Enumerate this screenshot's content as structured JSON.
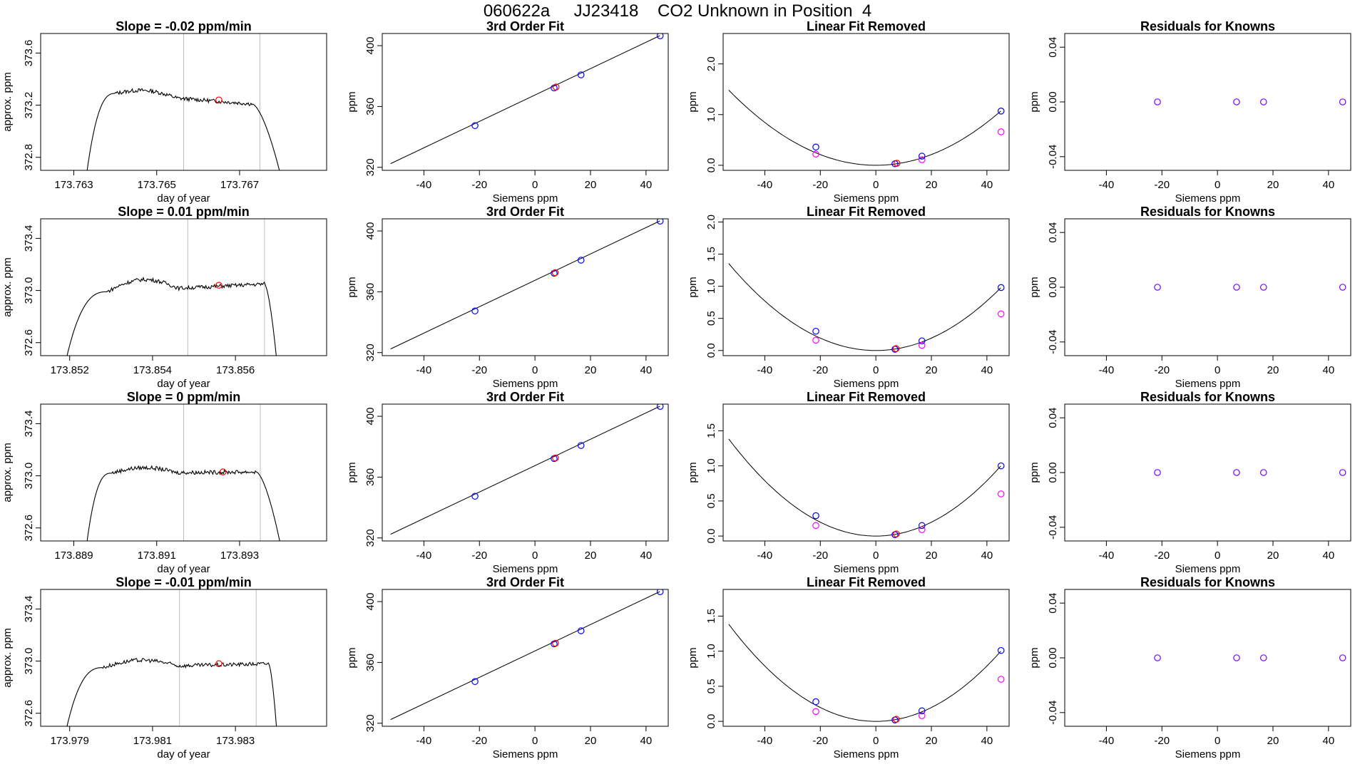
{
  "figure": {
    "main_title": "060622a     JJ23418    CO2 Unknown in Position  4"
  },
  "colors": {
    "line": "#000000",
    "frame": "#000000",
    "known": "#0000ff",
    "unknown": "#ff0000",
    "residual": "#8000ff",
    "linear_removed_magenta": "#ff00ff",
    "vline": "#bebebe"
  },
  "chart_data": [
    {
      "type": "line",
      "row": 1,
      "panel": "time-series",
      "title": "Slope =  -0.02  ppm/min",
      "xlabel": "day of year",
      "ylabel": "approx. ppm",
      "xlim": [
        173.7622,
        173.7691
      ],
      "ylim": [
        372.7,
        373.75
      ],
      "x_ticks": [
        173.763,
        173.765,
        173.767
      ],
      "x_tick_labels": [
        "173.763",
        "173.765",
        "173.767"
      ],
      "y_ticks": [
        372.8,
        373.2,
        373.6
      ],
      "y_tick_labels": [
        "372.8",
        "373.2",
        "373.6"
      ],
      "t_start": 173.7633,
      "t_end": 173.768,
      "rise_end": 173.764,
      "drop_start": 173.7673,
      "plateau_start_level": 373.29,
      "plateau_end_level": 373.21,
      "peak_level": 373.33,
      "bottom_level": 372.65,
      "vlines": [
        173.76565,
        173.76749
      ],
      "unknown_point": {
        "x": 173.7665,
        "y": 373.24
      }
    },
    {
      "type": "line",
      "row": 2,
      "panel": "time-series",
      "title": "Slope =  0.01  ppm/min",
      "xlabel": "day of year",
      "ylabel": "approx. ppm",
      "xlim": [
        173.8513,
        173.8582
      ],
      "ylim": [
        372.5,
        373.55
      ],
      "x_ticks": [
        173.852,
        173.854,
        173.856
      ],
      "x_tick_labels": [
        "173.852",
        "173.854",
        "173.856"
      ],
      "y_ticks": [
        372.6,
        373.0,
        373.4
      ],
      "y_tick_labels": [
        "372.6",
        "373.0",
        "373.4"
      ],
      "t_start": 173.8519,
      "t_end": 173.857,
      "rise_end": 173.8529,
      "drop_start": 173.8567,
      "plateau_start_level": 372.99,
      "plateau_end_level": 373.05,
      "peak_level": 373.07,
      "bottom_level": 372.45,
      "vlines": [
        173.85485,
        173.8567
      ],
      "unknown_point": {
        "x": 173.8556,
        "y": 373.04
      }
    },
    {
      "type": "line",
      "row": 3,
      "panel": "time-series",
      "title": "Slope =  0  ppm/min",
      "xlabel": "day of year",
      "ylabel": "approx. ppm",
      "xlim": [
        173.8882,
        173.8951
      ],
      "ylim": [
        372.5,
        373.55
      ],
      "x_ticks": [
        173.889,
        173.891,
        173.893
      ],
      "x_tick_labels": [
        "173.889",
        "173.891",
        "173.893"
      ],
      "y_ticks": [
        372.6,
        373.0,
        373.4
      ],
      "y_tick_labels": [
        "372.6",
        "373.0",
        "373.4"
      ],
      "t_start": 173.8893,
      "t_end": 173.894,
      "rise_end": 173.8899,
      "drop_start": 173.8934,
      "plateau_start_level": 373.02,
      "plateau_end_level": 373.03,
      "peak_level": 373.06,
      "bottom_level": 372.45,
      "vlines": [
        173.89165,
        173.8935
      ],
      "unknown_point": {
        "x": 173.8926,
        "y": 373.03
      }
    },
    {
      "type": "line",
      "row": 4,
      "panel": "time-series",
      "title": "Slope =  -0.01  ppm/min",
      "xlabel": "day of year",
      "ylabel": "approx. ppm",
      "xlim": [
        173.9783,
        173.9852
      ],
      "ylim": [
        372.5,
        373.55
      ],
      "x_ticks": [
        173.979,
        173.981,
        173.983
      ],
      "x_tick_labels": [
        "173.979",
        "173.981",
        "173.983"
      ],
      "y_ticks": [
        372.6,
        373.0,
        373.4
      ],
      "y_tick_labels": [
        "372.6",
        "373.0",
        "373.4"
      ],
      "t_start": 173.9789,
      "t_end": 173.984,
      "rise_end": 173.9798,
      "drop_start": 173.9838,
      "plateau_start_level": 372.95,
      "plateau_end_level": 372.98,
      "peak_level": 373.0,
      "bottom_level": 372.45,
      "vlines": [
        173.98165,
        173.9835
      ],
      "unknown_point": {
        "x": 173.9826,
        "y": 372.98
      }
    },
    {
      "type": "scatter",
      "row": 1,
      "panel": "fit",
      "title": "3rd Order Fit",
      "xlabel": "Siemens ppm",
      "ylabel": "ppm",
      "xlim": [
        -55,
        48
      ],
      "ylim": [
        318,
        408
      ],
      "x_ticks": [
        -40,
        -20,
        0,
        20,
        40
      ],
      "x_tick_labels": [
        "-40",
        "-20",
        "0",
        "20",
        "40"
      ],
      "y_ticks": [
        320,
        360,
        400
      ],
      "y_tick_labels": [
        "320",
        "360",
        "400"
      ],
      "fit_line": {
        "x": [
          -52,
          45
        ],
        "y": [
          322.4,
          406.6
        ]
      },
      "knowns": [
        {
          "x": -21.6,
          "y": 347.4
        },
        {
          "x": 6.9,
          "y": 372.2
        },
        {
          "x": 16.6,
          "y": 380.8
        },
        {
          "x": 45.1,
          "y": 406.5
        }
      ],
      "unknown": {
        "x": 7.6,
        "y": 372.8
      }
    },
    {
      "type": "scatter",
      "row": 2,
      "panel": "fit",
      "title": "3rd Order Fit",
      "xlabel": "Siemens ppm",
      "ylabel": "ppm",
      "xlim": [
        -55,
        48
      ],
      "ylim": [
        318,
        408
      ],
      "x_ticks": [
        -40,
        -20,
        0,
        20,
        40
      ],
      "x_tick_labels": [
        "-40",
        "-20",
        "0",
        "20",
        "40"
      ],
      "y_ticks": [
        320,
        360,
        400
      ],
      "y_tick_labels": [
        "320",
        "360",
        "400"
      ],
      "fit_line": {
        "x": [
          -52,
          45
        ],
        "y": [
          322.4,
          406.6
        ]
      },
      "knowns": [
        {
          "x": -21.6,
          "y": 347.4
        },
        {
          "x": 6.9,
          "y": 372.2
        },
        {
          "x": 16.6,
          "y": 380.8
        },
        {
          "x": 45.1,
          "y": 406.5
        }
      ],
      "unknown": {
        "x": 7.3,
        "y": 372.6
      }
    },
    {
      "type": "scatter",
      "row": 3,
      "panel": "fit",
      "title": "3rd Order Fit",
      "xlabel": "Siemens ppm",
      "ylabel": "ppm",
      "xlim": [
        -55,
        48
      ],
      "ylim": [
        318,
        408
      ],
      "x_ticks": [
        -40,
        -20,
        0,
        20,
        40
      ],
      "x_tick_labels": [
        "-40",
        "-20",
        "0",
        "20",
        "40"
      ],
      "y_ticks": [
        320,
        360,
        400
      ],
      "y_tick_labels": [
        "320",
        "360",
        "400"
      ],
      "fit_line": {
        "x": [
          -52,
          45
        ],
        "y": [
          322.4,
          406.6
        ]
      },
      "knowns": [
        {
          "x": -21.6,
          "y": 347.4
        },
        {
          "x": 6.9,
          "y": 372.2
        },
        {
          "x": 16.6,
          "y": 380.8
        },
        {
          "x": 45.1,
          "y": 406.5
        }
      ],
      "unknown": {
        "x": 7.4,
        "y": 372.6
      }
    },
    {
      "type": "scatter",
      "row": 4,
      "panel": "fit",
      "title": "3rd Order Fit",
      "xlabel": "Siemens ppm",
      "ylabel": "ppm",
      "xlim": [
        -55,
        48
      ],
      "ylim": [
        318,
        408
      ],
      "x_ticks": [
        -40,
        -20,
        0,
        20,
        40
      ],
      "x_tick_labels": [
        "-40",
        "-20",
        "0",
        "20",
        "40"
      ],
      "y_ticks": [
        320,
        360,
        400
      ],
      "y_tick_labels": [
        "320",
        "360",
        "400"
      ],
      "fit_line": {
        "x": [
          -52,
          45
        ],
        "y": [
          322.4,
          406.6
        ]
      },
      "knowns": [
        {
          "x": -21.6,
          "y": 347.4
        },
        {
          "x": 6.9,
          "y": 372.2
        },
        {
          "x": 16.6,
          "y": 380.8
        },
        {
          "x": 45.1,
          "y": 406.5
        }
      ],
      "unknown": {
        "x": 7.4,
        "y": 372.6
      }
    },
    {
      "type": "scatter",
      "row": 1,
      "panel": "linear-removed",
      "title": "Linear Fit Removed",
      "xlabel": "Siemens ppm",
      "ylabel": "ppm",
      "xlim": [
        -55,
        48
      ],
      "ylim": [
        -0.1,
        2.6
      ],
      "x_ticks": [
        -40,
        -20,
        0,
        20,
        40
      ],
      "x_tick_labels": [
        "-40",
        "-20",
        "0",
        "20",
        "40"
      ],
      "y_ticks": [
        0.0,
        1.0,
        2.0
      ],
      "y_tick_labels": [
        "0.0",
        "1.0",
        "2.0"
      ],
      "curve": {
        "a": 0.000528,
        "x_from": -53,
        "x_to": 45
      },
      "knowns": [
        {
          "x": -21.6,
          "y": 0.36
        },
        {
          "x": 6.9,
          "y": 0.03
        },
        {
          "x": 16.6,
          "y": 0.18
        },
        {
          "x": 45.1,
          "y": 1.07
        }
      ],
      "magenta": [
        {
          "x": -21.6,
          "y": 0.22
        },
        {
          "x": 6.9,
          "y": 0.03
        },
        {
          "x": 16.6,
          "y": 0.11
        },
        {
          "x": 45.1,
          "y": 0.66
        }
      ],
      "unknown": {
        "x": 7.6,
        "y": 0.04
      }
    },
    {
      "type": "scatter",
      "row": 2,
      "panel": "linear-removed",
      "title": "Linear Fit Removed",
      "xlabel": "Siemens ppm",
      "ylabel": "ppm",
      "xlim": [
        -55,
        48
      ],
      "ylim": [
        -0.08,
        2.05
      ],
      "x_ticks": [
        -40,
        -20,
        0,
        20,
        40
      ],
      "x_tick_labels": [
        "-40",
        "-20",
        "0",
        "20",
        "40"
      ],
      "y_ticks": [
        0.0,
        0.5,
        1.0,
        1.5,
        2.0
      ],
      "y_tick_labels": [
        "0.0",
        "0.5",
        "1.0",
        "1.5",
        "2.0"
      ],
      "curve": {
        "a": 0.000482,
        "x_from": -53,
        "x_to": 45
      },
      "knowns": [
        {
          "x": -21.6,
          "y": 0.3
        },
        {
          "x": 6.9,
          "y": 0.02
        },
        {
          "x": 16.6,
          "y": 0.15
        },
        {
          "x": 45.1,
          "y": 0.98
        }
      ],
      "magenta": [
        {
          "x": -21.6,
          "y": 0.16
        },
        {
          "x": 6.9,
          "y": 0.02
        },
        {
          "x": 16.6,
          "y": 0.08
        },
        {
          "x": 45.1,
          "y": 0.57
        }
      ],
      "unknown": {
        "x": 7.3,
        "y": 0.03
      }
    },
    {
      "type": "scatter",
      "row": 3,
      "panel": "linear-removed",
      "title": "Linear Fit Removed",
      "xlabel": "Siemens ppm",
      "ylabel": "ppm",
      "xlim": [
        -55,
        48
      ],
      "ylim": [
        -0.07,
        1.88
      ],
      "x_ticks": [
        -40,
        -20,
        0,
        20,
        40
      ],
      "x_tick_labels": [
        "-40",
        "-20",
        "0",
        "20",
        "40"
      ],
      "y_ticks": [
        0.0,
        0.5,
        1.0,
        1.5
      ],
      "y_tick_labels": [
        "0.0",
        "0.5",
        "1.0",
        "1.5"
      ],
      "curve": {
        "a": 0.000493,
        "x_from": -53,
        "x_to": 45
      },
      "knowns": [
        {
          "x": -21.6,
          "y": 0.29
        },
        {
          "x": 6.9,
          "y": 0.02
        },
        {
          "x": 16.6,
          "y": 0.15
        },
        {
          "x": 45.1,
          "y": 1.0
        }
      ],
      "magenta": [
        {
          "x": -21.6,
          "y": 0.15
        },
        {
          "x": 6.9,
          "y": 0.02
        },
        {
          "x": 16.6,
          "y": 0.09
        },
        {
          "x": 45.1,
          "y": 0.6
        }
      ],
      "unknown": {
        "x": 7.4,
        "y": 0.03
      }
    },
    {
      "type": "scatter",
      "row": 4,
      "panel": "linear-removed",
      "title": "Linear Fit Removed",
      "xlabel": "Siemens ppm",
      "ylabel": "ppm",
      "xlim": [
        -55,
        48
      ],
      "ylim": [
        -0.07,
        1.88
      ],
      "x_ticks": [
        -40,
        -20,
        0,
        20,
        40
      ],
      "x_tick_labels": [
        "-40",
        "-20",
        "0",
        "20",
        "40"
      ],
      "y_ticks": [
        0.0,
        0.5,
        1.0,
        1.5
      ],
      "y_tick_labels": [
        "0.0",
        "0.5",
        "1.0",
        "1.5"
      ],
      "curve": {
        "a": 0.000493,
        "x_from": -53,
        "x_to": 45
      },
      "knowns": [
        {
          "x": -21.6,
          "y": 0.28
        },
        {
          "x": 6.9,
          "y": 0.02
        },
        {
          "x": 16.6,
          "y": 0.15
        },
        {
          "x": 45.1,
          "y": 1.01
        }
      ],
      "magenta": [
        {
          "x": -21.6,
          "y": 0.14
        },
        {
          "x": 6.9,
          "y": 0.02
        },
        {
          "x": 16.6,
          "y": 0.08
        },
        {
          "x": 45.1,
          "y": 0.6
        }
      ],
      "unknown": {
        "x": 7.4,
        "y": 0.03
      }
    },
    {
      "type": "scatter",
      "row": 1,
      "panel": "residuals",
      "title": "Residuals for Knowns",
      "xlabel": "Siemens ppm",
      "ylabel": "ppm",
      "xlim": [
        -55,
        48
      ],
      "ylim": [
        -0.05,
        0.05
      ],
      "x_ticks": [
        -40,
        -20,
        0,
        20,
        40
      ],
      "x_tick_labels": [
        "-40",
        "-20",
        "0",
        "20",
        "40"
      ],
      "y_ticks": [
        -0.04,
        0.0,
        0.04
      ],
      "y_tick_labels": [
        "-0.04",
        "0.00",
        "0.04"
      ],
      "residuals": [
        {
          "x": -21.6,
          "y": 0
        },
        {
          "x": 6.9,
          "y": 0
        },
        {
          "x": 16.6,
          "y": 0
        },
        {
          "x": 45.1,
          "y": 0
        }
      ]
    },
    {
      "type": "scatter",
      "row": 2,
      "panel": "residuals",
      "title": "Residuals for Knowns",
      "xlabel": "Siemens ppm",
      "ylabel": "ppm",
      "xlim": [
        -55,
        48
      ],
      "ylim": [
        -0.05,
        0.05
      ],
      "x_ticks": [
        -40,
        -20,
        0,
        20,
        40
      ],
      "x_tick_labels": [
        "-40",
        "-20",
        "0",
        "20",
        "40"
      ],
      "y_ticks": [
        -0.04,
        0.0,
        0.04
      ],
      "y_tick_labels": [
        "-0.04",
        "0.00",
        "0.04"
      ],
      "residuals": [
        {
          "x": -21.6,
          "y": 0
        },
        {
          "x": 6.9,
          "y": 0
        },
        {
          "x": 16.6,
          "y": 0
        },
        {
          "x": 45.1,
          "y": 0
        }
      ]
    },
    {
      "type": "scatter",
      "row": 3,
      "panel": "residuals",
      "title": "Residuals for Knowns",
      "xlabel": "Siemens ppm",
      "ylabel": "ppm",
      "xlim": [
        -55,
        48
      ],
      "ylim": [
        -0.05,
        0.05
      ],
      "x_ticks": [
        -40,
        -20,
        0,
        20,
        40
      ],
      "x_tick_labels": [
        "-40",
        "-20",
        "0",
        "20",
        "40"
      ],
      "y_ticks": [
        -0.04,
        0.0,
        0.04
      ],
      "y_tick_labels": [
        "-0.04",
        "0.00",
        "0.04"
      ],
      "residuals": [
        {
          "x": -21.6,
          "y": 0
        },
        {
          "x": 6.9,
          "y": 0
        },
        {
          "x": 16.6,
          "y": 0
        },
        {
          "x": 45.1,
          "y": 0
        }
      ]
    },
    {
      "type": "scatter",
      "row": 4,
      "panel": "residuals",
      "title": "Residuals for Knowns",
      "xlabel": "Siemens ppm",
      "ylabel": "ppm",
      "xlim": [
        -55,
        48
      ],
      "ylim": [
        -0.05,
        0.05
      ],
      "x_ticks": [
        -40,
        -20,
        0,
        20,
        40
      ],
      "x_tick_labels": [
        "-40",
        "-20",
        "0",
        "20",
        "40"
      ],
      "y_ticks": [
        -0.04,
        0.0,
        0.04
      ],
      "y_tick_labels": [
        "-0.04",
        "0.00",
        "0.04"
      ],
      "residuals": [
        {
          "x": -21.6,
          "y": 0
        },
        {
          "x": 6.9,
          "y": 0
        },
        {
          "x": 16.6,
          "y": 0
        },
        {
          "x": 45.1,
          "y": 0
        }
      ]
    }
  ]
}
